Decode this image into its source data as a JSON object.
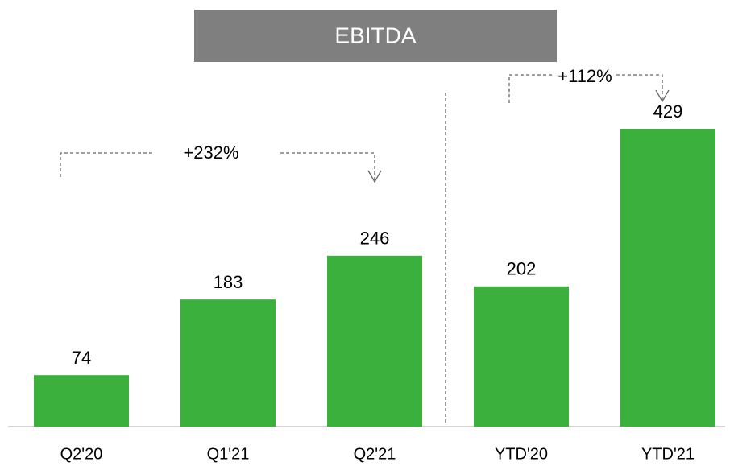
{
  "chart_data": {
    "type": "bar",
    "title": "EBITDA",
    "categories": [
      "Q2'20",
      "Q1'21",
      "Q2'21",
      "YTD'20",
      "YTD'21"
    ],
    "values": [
      74,
      183,
      246,
      202,
      429
    ],
    "color": "#3cb03c",
    "annotations": [
      "+232%",
      "+112%"
    ]
  }
}
